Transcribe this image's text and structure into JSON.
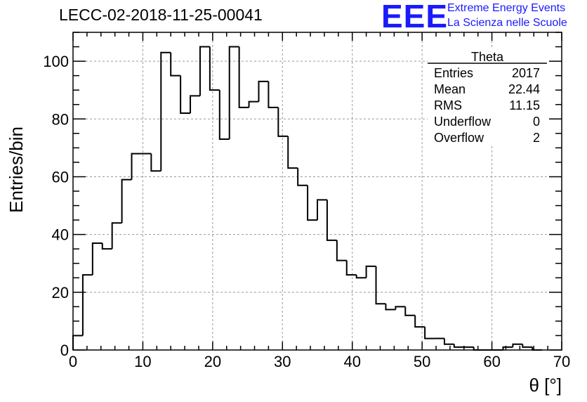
{
  "header": {
    "title": "LECC-02-2018-11-25-00041",
    "logo_text": "EEE",
    "logo_line1": "Extreme Energy Events",
    "logo_line2": "La Scienza nelle Scuole",
    "logo_color": "#1a1aff"
  },
  "stats_box": {
    "title": "Theta",
    "rows": [
      {
        "label": "Entries",
        "value": "2017"
      },
      {
        "label": "Mean",
        "value": "22.44"
      },
      {
        "label": "RMS",
        "value": "11.15"
      },
      {
        "label": "Underflow",
        "value": "0"
      },
      {
        "label": "Overflow",
        "value": "2"
      }
    ]
  },
  "chart_data": {
    "type": "bar",
    "style": "step-histogram",
    "xlabel": "θ [°]",
    "ylabel": "Entries/bin",
    "xlim": [
      0,
      70
    ],
    "ylim": [
      0,
      110
    ],
    "xticks": [
      0,
      10,
      20,
      30,
      40,
      50,
      60,
      70
    ],
    "yticks": [
      0,
      20,
      40,
      60,
      80,
      100
    ],
    "grid": true,
    "bin_width": 1.4,
    "bin_edges_start": 0,
    "values": [
      5,
      26,
      37,
      35,
      44,
      59,
      68,
      68,
      62,
      103,
      95,
      82,
      88,
      105,
      90,
      73,
      105,
      84,
      86,
      93,
      84,
      74,
      63,
      57,
      45,
      52,
      38,
      31,
      26,
      25,
      29,
      16,
      14,
      15,
      12,
      8,
      4,
      4,
      2,
      1,
      1,
      0,
      0,
      0,
      1,
      2,
      1,
      0
    ]
  }
}
